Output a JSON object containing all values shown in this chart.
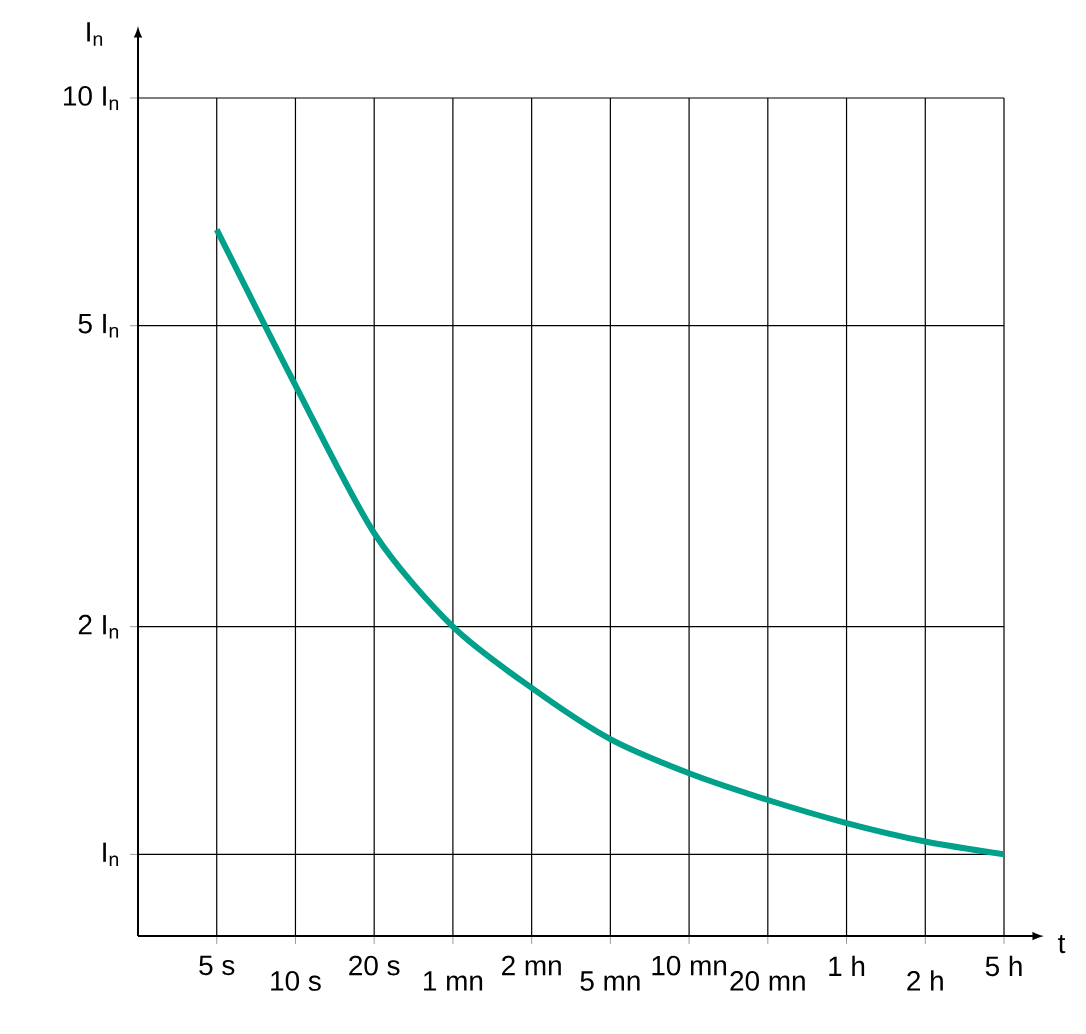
{
  "chart_data": {
    "type": "line",
    "xlabel": "t",
    "ylabel": "I$_{n}$",
    "categories": [
      "5 s",
      "10 s",
      "20 s",
      "1 mn",
      "2 mn",
      "5 mn",
      "10 mn",
      "20 mn",
      "1 h",
      "2 h",
      "5 h"
    ],
    "values": [
      6.7,
      4.17,
      2.66,
      2.0,
      1.66,
      1.42,
      1.28,
      1.18,
      1.1,
      1.04,
      1.0
    ],
    "color": "#00a08a",
    "log": "y",
    "ylim": [
      0.78,
      10
    ],
    "yticks": [
      {
        "value": 1,
        "label": "I$_{n}$"
      },
      {
        "value": 2,
        "label": "2 I$_{n}$"
      },
      {
        "value": 5,
        "label": "5 I$_{n}$"
      },
      {
        "value": 10,
        "label": "10 I$_{n}$"
      }
    ],
    "grid": true
  }
}
